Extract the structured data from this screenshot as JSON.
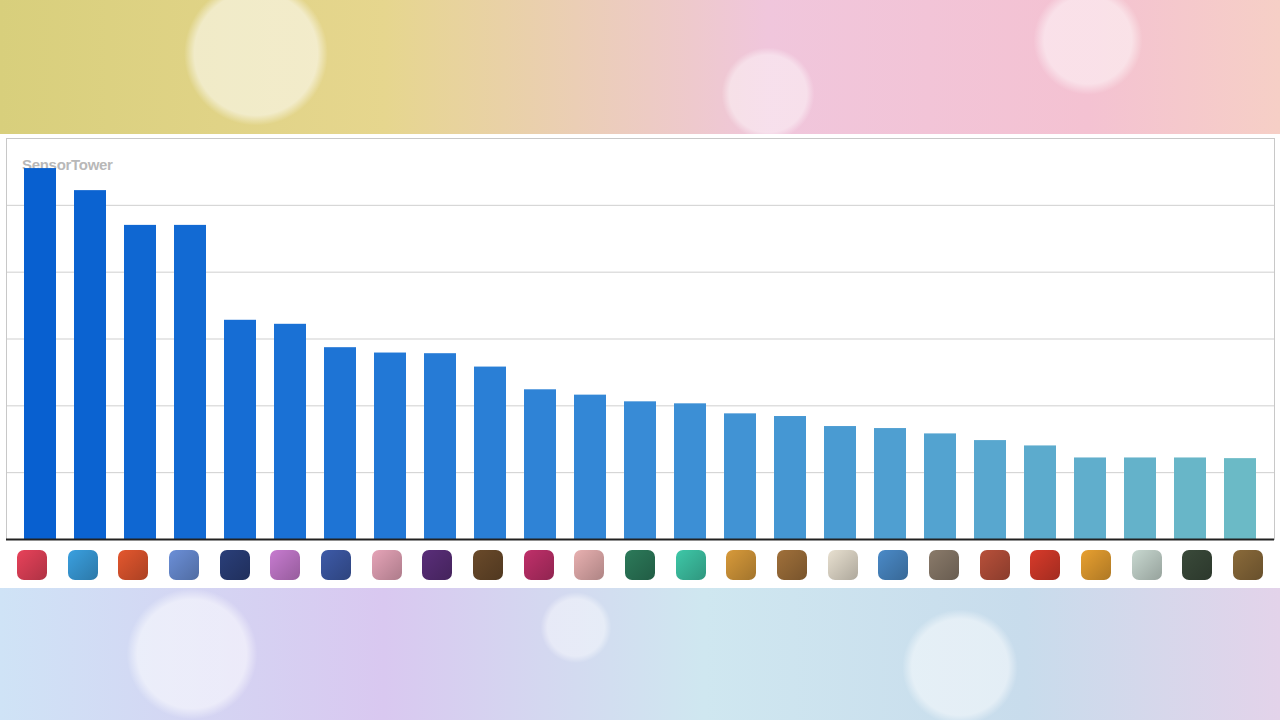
{
  "chart_data": {
    "type": "bar",
    "annotations": [
      "SensorTower"
    ],
    "categories": [
      null,
      null,
      null,
      null,
      null,
      null,
      null,
      null,
      null,
      null,
      null,
      null,
      null,
      null,
      null,
      null,
      null,
      null,
      null,
      null,
      null,
      null,
      null,
      null,
      null
    ],
    "values": [
      5.55,
      5.22,
      4.7,
      4.7,
      3.28,
      3.22,
      2.87,
      2.79,
      2.78,
      2.58,
      2.24,
      2.16,
      2.06,
      2.03,
      1.88,
      1.84,
      1.69,
      1.66,
      1.58,
      1.48,
      1.4,
      1.22,
      1.22,
      1.22,
      1.21
    ],
    "colors": [
      "#0860d0",
      "#0b63d1",
      "#0f67d2",
      "#126ad3",
      "#166dd4",
      "#1a71d5",
      "#1e74d5",
      "#2278d6",
      "#267bd6",
      "#2a7fd6",
      "#2f83d6",
      "#3387d6",
      "#388bd6",
      "#3c8fd5",
      "#4193d4",
      "#4597d3",
      "#4a9bd2",
      "#4f9fd1",
      "#53a3d0",
      "#58a7cf",
      "#5cabcd",
      "#60aecc",
      "#64b2ca",
      "#68b6c8",
      "#6bbac6"
    ],
    "ylim": [
      0,
      6
    ],
    "yticks": [
      0,
      1,
      2,
      3,
      4,
      5,
      6
    ],
    "grid": true,
    "tick_labels": false
  }
}
